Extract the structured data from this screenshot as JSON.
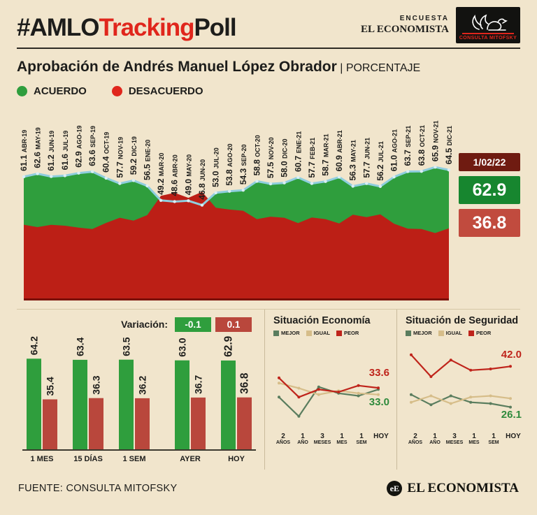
{
  "header": {
    "hashtag": "#AMLO",
    "tracking": "Tracking",
    "poll": "Poll",
    "encuesta": "ENCUESTA",
    "economista": "EL ECONOMISTA",
    "mitofsky": "CONSULTA MITOFSKY"
  },
  "title": {
    "main": "Aprobación de Andrés Manuel López Obrador",
    "unit": " | PORCENTAJE"
  },
  "legend": {
    "agree": "ACUERDO",
    "disagree": "DESACUERDO"
  },
  "highlight": {
    "date": "1/02/22",
    "approve": "62.9",
    "disapprove": "36.8"
  },
  "variation": {
    "label": "Variación:",
    "green": "-0.1",
    "red": "0.1"
  },
  "footer": {
    "source": "FUENTE: CONSULTA MITOFSKY",
    "brand": "EL ECONOMISTA",
    "brand_icon": "eE"
  },
  "colors": {
    "background": "#f1e5cc",
    "accent_red": "#e0261c",
    "approve_green": "#2f9e3d",
    "disapprove_red": "#bc1f16",
    "trend_blue": "#8fcede",
    "date_box": "#6f1b11",
    "approve_box": "#17862f",
    "disapprove_box": "#c14b3e",
    "mejor": "#5a7d5e",
    "igual": "#d6bd89",
    "peor": "#bf241b"
  },
  "chart_data": [
    {
      "id": "aprobacion-tracking",
      "type": "area",
      "title": "Aprobación de Andrés Manuel López Obrador (%)",
      "ylim": [
        0,
        70
      ],
      "legend_position": "top-left",
      "categories": [
        "ABR-19",
        "MAY-19",
        "JUN-19",
        "JUL-19",
        "AGO-19",
        "SEP-19",
        "OCT-19",
        "NOV-19",
        "DIC-19",
        "ENE-20",
        "MAR-20",
        "ABR-20",
        "MAY-20",
        "JUN-20",
        "JUL-20",
        "AGO-20",
        "SEP-20",
        "OCT-20",
        "NOV-20",
        "DIC-20",
        "ENE-21",
        "FEB-21",
        "MAR-21",
        "ABR-21",
        "MAY-21",
        "JUN-21",
        "JUL-21",
        "AGO-21",
        "SEP-21",
        "OCT-21",
        "NOV-21",
        "DIC-21"
      ],
      "series": [
        {
          "name": "ACUERDO",
          "color": "#2f9e3d",
          "values": [
            61.1,
            62.6,
            61.2,
            61.6,
            62.9,
            63.6,
            60.4,
            57.7,
            59.2,
            56.5,
            49.2,
            48.6,
            49.0,
            46.8,
            53.0,
            53.8,
            54.3,
            58.8,
            57.5,
            58.0,
            60.7,
            57.7,
            58.7,
            60.9,
            56.3,
            57.7,
            56.2,
            61.0,
            63.7,
            63.8,
            65.9,
            64.5
          ]
        },
        {
          "name": "DESACUERDO",
          "color": "#bc1f16",
          "estimated": true,
          "values": [
            37.0,
            35.8,
            36.9,
            36.5,
            35.5,
            34.8,
            37.9,
            40.5,
            39.0,
            41.8,
            51.5,
            53.0,
            50.5,
            53.5,
            45.5,
            44.6,
            44.0,
            39.8,
            41.0,
            40.5,
            37.8,
            40.6,
            39.8,
            37.6,
            42.0,
            40.8,
            42.2,
            37.5,
            35.0,
            34.8,
            32.8,
            35.2
          ]
        }
      ],
      "line_color": "#8fcede",
      "latest": {
        "date": "1/02/22",
        "acuerdo": 62.9,
        "desacuerdo": 36.8
      }
    },
    {
      "id": "variacion-bars",
      "type": "bar",
      "categories": [
        "1 MES",
        "15 DÍAS",
        "1 SEM",
        "AYER",
        "HOY"
      ],
      "series": [
        {
          "name": "ACUERDO",
          "color": "#2f9e3d",
          "values": [
            64.2,
            63.4,
            63.5,
            63.0,
            62.9
          ]
        },
        {
          "name": "DESACUERDO",
          "color": "#b9473c",
          "values": [
            35.4,
            36.3,
            36.2,
            36.7,
            36.8
          ]
        }
      ],
      "ylim": [
        0,
        70
      ],
      "variation": {
        "acuerdo": "-0.1",
        "desacuerdo": "0.1"
      }
    },
    {
      "id": "situacion-economia",
      "type": "line",
      "title": "Situación Economía",
      "x": [
        "2 AÑOS",
        "1 AÑO",
        "3 MESES",
        "1 MES",
        "1 SEM",
        "HOY"
      ],
      "ylim": [
        20,
        50
      ],
      "series": [
        {
          "name": "MEJOR",
          "color": "#5a7d5e",
          "estimated": true,
          "values": [
            30.0,
            22.5,
            34.0,
            31.5,
            30.5,
            33.0
          ]
        },
        {
          "name": "IGUAL",
          "color": "#d6bd89",
          "estimated": true,
          "values": [
            35.5,
            33.5,
            31.0,
            32.5,
            31.5,
            31.0
          ]
        },
        {
          "name": "PEOR",
          "color": "#bf241b",
          "estimated": true,
          "values": [
            37.5,
            30.0,
            33.0,
            32.0,
            34.5,
            33.6
          ]
        }
      ],
      "end_labels": {
        "peor": "33.6",
        "mejor": "33.0"
      }
    },
    {
      "id": "situacion-seguridad",
      "type": "line",
      "title": "Situación de Seguridad",
      "x": [
        "2 AÑOS",
        "1 AÑO",
        "3 MESES",
        "1 MES",
        "1 SEM",
        "HOY"
      ],
      "ylim": [
        20,
        50
      ],
      "series": [
        {
          "name": "MEJOR",
          "color": "#5a7d5e",
          "estimated": true,
          "values": [
            31.0,
            27.0,
            30.5,
            28.0,
            27.5,
            26.1
          ]
        },
        {
          "name": "IGUAL",
          "color": "#d6bd89",
          "estimated": true,
          "values": [
            28.0,
            30.5,
            27.5,
            30.0,
            30.5,
            29.5
          ]
        },
        {
          "name": "PEOR",
          "color": "#bf241b",
          "estimated": true,
          "values": [
            46.5,
            38.0,
            44.5,
            40.5,
            41.0,
            42.0
          ]
        }
      ],
      "end_labels": {
        "peor": "42.0",
        "mejor": "26.1"
      }
    }
  ]
}
